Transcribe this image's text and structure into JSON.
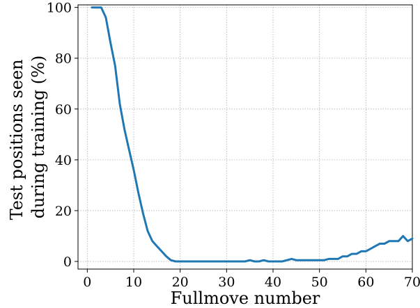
{
  "chart_data": {
    "type": "line",
    "title": "",
    "xlabel": "Fullmove number",
    "ylabel_lines": [
      "Test positions seen",
      "during training (%)"
    ],
    "xlim": [
      -2,
      70
    ],
    "ylim": [
      -3,
      101
    ],
    "xticks": [
      0,
      10,
      20,
      30,
      40,
      50,
      60,
      70
    ],
    "yticks": [
      0,
      20,
      40,
      60,
      80,
      100
    ],
    "grid": true,
    "legend": "none",
    "series": [
      {
        "color": "#1f77b4",
        "x": [
          1,
          2,
          3,
          4,
          5,
          6,
          7,
          8,
          9,
          10,
          11,
          12,
          13,
          14,
          15,
          16,
          17,
          18,
          19,
          20,
          21,
          22,
          23,
          24,
          25,
          26,
          27,
          28,
          29,
          30,
          31,
          32,
          33,
          34,
          35,
          36,
          37,
          38,
          39,
          40,
          41,
          42,
          43,
          44,
          45,
          46,
          47,
          48,
          49,
          50,
          51,
          52,
          53,
          54,
          55,
          56,
          57,
          58,
          59,
          60,
          61,
          62,
          63,
          64,
          65,
          66,
          67,
          68,
          69,
          70
        ],
        "y": [
          100,
          100,
          100,
          96,
          86,
          77,
          62,
          52,
          44,
          36,
          27,
          19,
          12,
          8,
          6,
          4,
          2,
          0.5,
          0,
          0,
          0,
          0,
          0,
          0,
          0,
          0,
          0,
          0,
          0,
          0,
          0,
          0,
          0,
          0,
          0.5,
          0,
          0,
          0.5,
          0,
          0,
          0,
          0,
          0.5,
          1,
          0.5,
          0.5,
          0.5,
          0.5,
          0.5,
          0.5,
          0.5,
          1,
          1,
          1,
          2,
          2,
          3,
          3,
          4,
          4,
          5,
          6,
          7,
          7,
          8,
          8,
          8,
          10,
          8,
          9
        ]
      }
    ]
  }
}
